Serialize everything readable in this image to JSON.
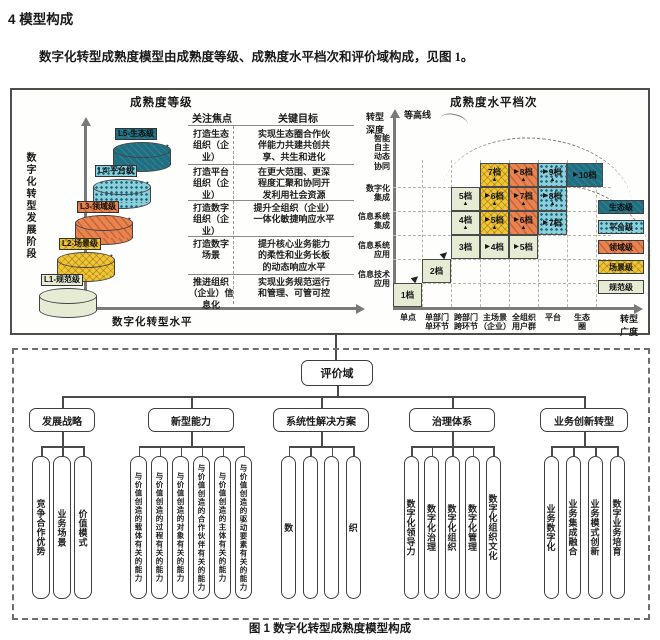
{
  "page": {
    "heading": "4 模型构成",
    "paragraph": "数字化转型成熟度模型由成熟度等级、成熟度水平档次和评价域构成，见图 1。",
    "caption": "图 1 数字化转型成熟度模型构成"
  },
  "left_panel": {
    "title": "成熟度等级",
    "y_axis_label": "数字化转型发展阶段",
    "x_axis_label": "数字化转型水平",
    "col_headers": [
      "关注焦点",
      "关键目标"
    ],
    "levels": [
      {
        "name": "L5-生态级",
        "cls": "e",
        "focus": "打造生态\n组织（企业）",
        "goal": "实现生态圈合作伙\n伴能力共建共创共\n享、共生和进化"
      },
      {
        "name": "L4-平台级",
        "cls": "p",
        "focus": "打造平台\n组织（企业）",
        "goal": "在更大范围、更深\n程度汇聚和协同开\n发利用社会资源"
      },
      {
        "name": "L3-领域级",
        "cls": "o",
        "focus": "打造数字\n组织（企业）",
        "goal": "提升全组织（企业）\n一体化敏捷响应水平"
      },
      {
        "name": "L2-场景级",
        "cls": "y",
        "focus": "打造数字\n场景",
        "goal": "提升核心业务能力\n的柔性和业务长板\n的动态响应水平"
      },
      {
        "name": "L1-规范级",
        "cls": "g",
        "focus": "推进组织\n（企业）信息化",
        "goal": "实现业务规范运行\n和管理、可管可控"
      }
    ]
  },
  "right_panel": {
    "title": "成熟度水平档次",
    "contour_label": "等高线",
    "y_axis_title": "转型\n深度",
    "x_axis_title": "转型\n广度",
    "y_labels": [
      "智能\n自主\n动态\n协同",
      "数字化\n集成",
      "信息系统\n集成",
      "信息系统\n应用",
      "信息技术\n应用"
    ],
    "x_labels": [
      "单点",
      "单部门\n单环节",
      "跨部门\n跨环节",
      "主场景\n（企业）",
      "全组织\n用户群",
      "平台",
      "生态\n圈"
    ],
    "legend": [
      {
        "label": "生态级",
        "cls": "e"
      },
      {
        "label": "平台级",
        "cls": "p"
      },
      {
        "label": "领域级",
        "cls": "o"
      },
      {
        "label": "场景级",
        "cls": "y"
      },
      {
        "label": "规范级",
        "cls": "g"
      }
    ],
    "cells": [
      {
        "c": 1,
        "r": 1,
        "label": "1档",
        "cls": "g",
        "right": false,
        "up": false
      },
      {
        "c": 2,
        "r": 2,
        "label": "2档",
        "cls": "g",
        "right": false,
        "up": false
      },
      {
        "c": 3,
        "r": 3,
        "label": "3档",
        "cls": "g",
        "right": false,
        "up": false
      },
      {
        "c": 4,
        "r": 3,
        "label": "4档",
        "cls": "g",
        "right": true,
        "up": false
      },
      {
        "c": 5,
        "r": 3,
        "label": "5档",
        "cls": "g",
        "right": true,
        "up": false
      },
      {
        "c": 3,
        "r": 4,
        "label": "4档",
        "cls": "g",
        "right": false,
        "up": true
      },
      {
        "c": 4,
        "r": 4,
        "label": "5档",
        "cls": "y",
        "right": true,
        "up": true
      },
      {
        "c": 5,
        "r": 4,
        "label": "6档",
        "cls": "o",
        "right": true,
        "up": true
      },
      {
        "c": 6,
        "r": 4,
        "label": "7档",
        "cls": "p",
        "right": true,
        "up": false
      },
      {
        "c": 3,
        "r": 5,
        "label": "5档",
        "cls": "g",
        "right": false,
        "up": true
      },
      {
        "c": 4,
        "r": 5,
        "label": "6档",
        "cls": "y",
        "right": true,
        "up": true
      },
      {
        "c": 5,
        "r": 5,
        "label": "7档",
        "cls": "o",
        "right": true,
        "up": true
      },
      {
        "c": 6,
        "r": 5,
        "label": "8档",
        "cls": "p",
        "right": true,
        "up": true
      },
      {
        "c": 4,
        "r": 6,
        "label": "7档",
        "cls": "y",
        "right": false,
        "up": true
      },
      {
        "c": 5,
        "r": 6,
        "label": "8档",
        "cls": "o",
        "right": true,
        "up": true
      },
      {
        "c": 6,
        "r": 6,
        "label": "9档",
        "cls": "p",
        "right": true,
        "up": true
      },
      {
        "c": 7,
        "r": 6,
        "label": "10档",
        "cls": "e",
        "right": true,
        "up": false
      }
    ]
  },
  "tree": {
    "root": "评价域",
    "groups": [
      {
        "label": "发展战略",
        "items": [
          "竞争合作优势",
          "业务场景",
          "价值模式"
        ]
      },
      {
        "label": "新型能力",
        "items": [
          "与价值创造的载体有关的能力",
          "与价值创造的过程有关的能力",
          "与价值创造的对象有关的能力",
          "与价值创造的合作伙伴有关的能力",
          "与价值创造的主体有关的能力",
          "与价值创造的驱动要素有关的能力"
        ]
      },
      {
        "label": "系统性解决方案",
        "items": [
          "数",
          "",
          "",
          "织"
        ]
      },
      {
        "label": "治理体系",
        "items": [
          "数字化领导力",
          "数字化治理",
          "数字化组织",
          "数字化管理",
          "数字化组织文化"
        ]
      },
      {
        "label": "业务创新转型",
        "items": [
          "业务数字化",
          "业务集成融合",
          "业务模式创新",
          "数字业务培育"
        ]
      }
    ]
  },
  "colors": {
    "eco": "#1d6f81",
    "platform": "#8ccfdb",
    "domain": "#e98350",
    "scene": "#f1c636",
    "norm": "#e6ecd4"
  }
}
